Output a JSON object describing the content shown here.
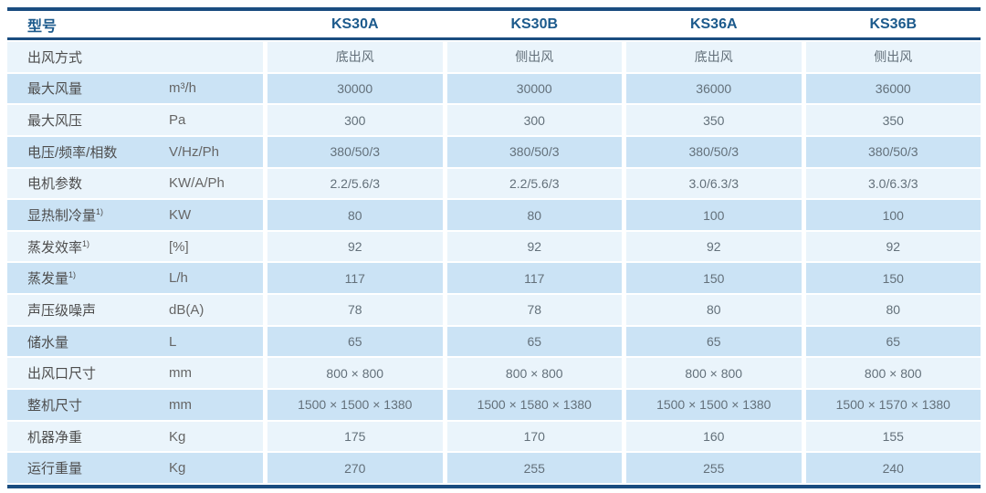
{
  "header": {
    "model_label": "型号",
    "models": [
      "KS30A",
      "KS30B",
      "KS36A",
      "KS36B"
    ]
  },
  "rows": [
    {
      "label": "出风方式",
      "unit": "",
      "values": [
        "底出风",
        "侧出风",
        "底出风",
        "侧出风"
      ]
    },
    {
      "label": "最大风量",
      "unit": "m³/h",
      "values": [
        "30000",
        "30000",
        "36000",
        "36000"
      ]
    },
    {
      "label": "最大风压",
      "unit": "Pa",
      "values": [
        "300",
        "300",
        "350",
        "350"
      ]
    },
    {
      "label": "电压/频率/相数",
      "unit": "V/Hz/Ph",
      "values": [
        "380/50/3",
        "380/50/3",
        "380/50/3",
        "380/50/3"
      ]
    },
    {
      "label": "电机参数",
      "unit": "KW/A/Ph",
      "values": [
        "2.2/5.6/3",
        "2.2/5.6/3",
        "3.0/6.3/3",
        "3.0/6.3/3"
      ]
    },
    {
      "label": "显热制冷量",
      "sup": "1)",
      "unit": "KW",
      "values": [
        "80",
        "80",
        "100",
        "100"
      ]
    },
    {
      "label": "蒸发效率",
      "sup": "1)",
      "unit": "[%]",
      "values": [
        "92",
        "92",
        "92",
        "92"
      ]
    },
    {
      "label": "蒸发量",
      "sup": "1)",
      "unit": "L/h",
      "values": [
        "117",
        "117",
        "150",
        "150"
      ]
    },
    {
      "label": "声压级噪声",
      "unit": "dB(A)",
      "values": [
        "78",
        "78",
        "80",
        "80"
      ]
    },
    {
      "label": "储水量",
      "unit": "L",
      "values": [
        "65",
        "65",
        "65",
        "65"
      ]
    },
    {
      "label": "出风口尺寸",
      "unit": "mm",
      "values": [
        "800 × 800",
        "800 × 800",
        "800 × 800",
        "800 × 800"
      ]
    },
    {
      "label": "整机尺寸",
      "unit": "mm",
      "values": [
        "1500 × 1500 × 1380",
        "1500 × 1580 × 1380",
        "1500 × 1500 × 1380",
        "1500 × 1570 × 1380"
      ]
    },
    {
      "label": "机器净重",
      "unit": "Kg",
      "values": [
        "175",
        "170",
        "160",
        "155"
      ]
    },
    {
      "label": "运行重量",
      "unit": "Kg",
      "values": [
        "270",
        "255",
        "255",
        "240"
      ]
    }
  ],
  "colors": {
    "border_navy": "#1a4d80",
    "header_text": "#1c5a8c",
    "row_light": "#eaf4fb",
    "row_dark": "#cbe3f5",
    "label_text": "#4d4d4d",
    "value_text": "#63707a"
  }
}
